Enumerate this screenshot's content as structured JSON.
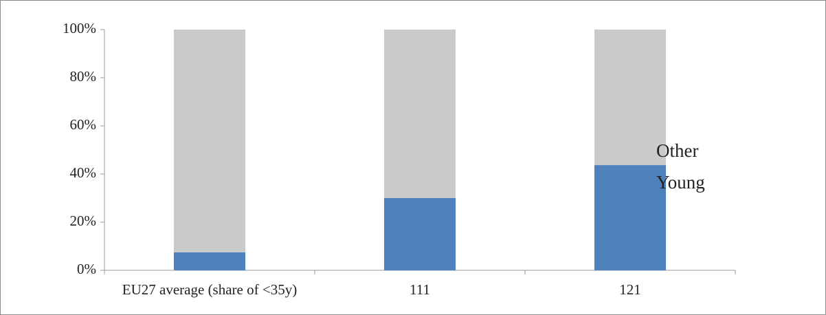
{
  "chart_data": {
    "type": "stacked_bar",
    "categories": [
      "EU27 average (share of <35y)",
      "111",
      "121"
    ],
    "series": [
      {
        "name": "Young",
        "color": "#4f81bd",
        "values": [
          7.5,
          30,
          43.7
        ]
      },
      {
        "name": "Other",
        "color": "#c9cacc",
        "values": [
          92.5,
          70,
          56.3
        ]
      }
    ],
    "ylim": [
      0,
      100
    ],
    "yticks": [
      {
        "value": 0,
        "label": "0%"
      },
      {
        "value": 20,
        "label": "20%"
      },
      {
        "value": 40,
        "label": "40%"
      },
      {
        "value": 60,
        "label": "60%"
      },
      {
        "value": 80,
        "label": "80%"
      },
      {
        "value": 100,
        "label": "100%"
      }
    ],
    "legend": "right"
  }
}
